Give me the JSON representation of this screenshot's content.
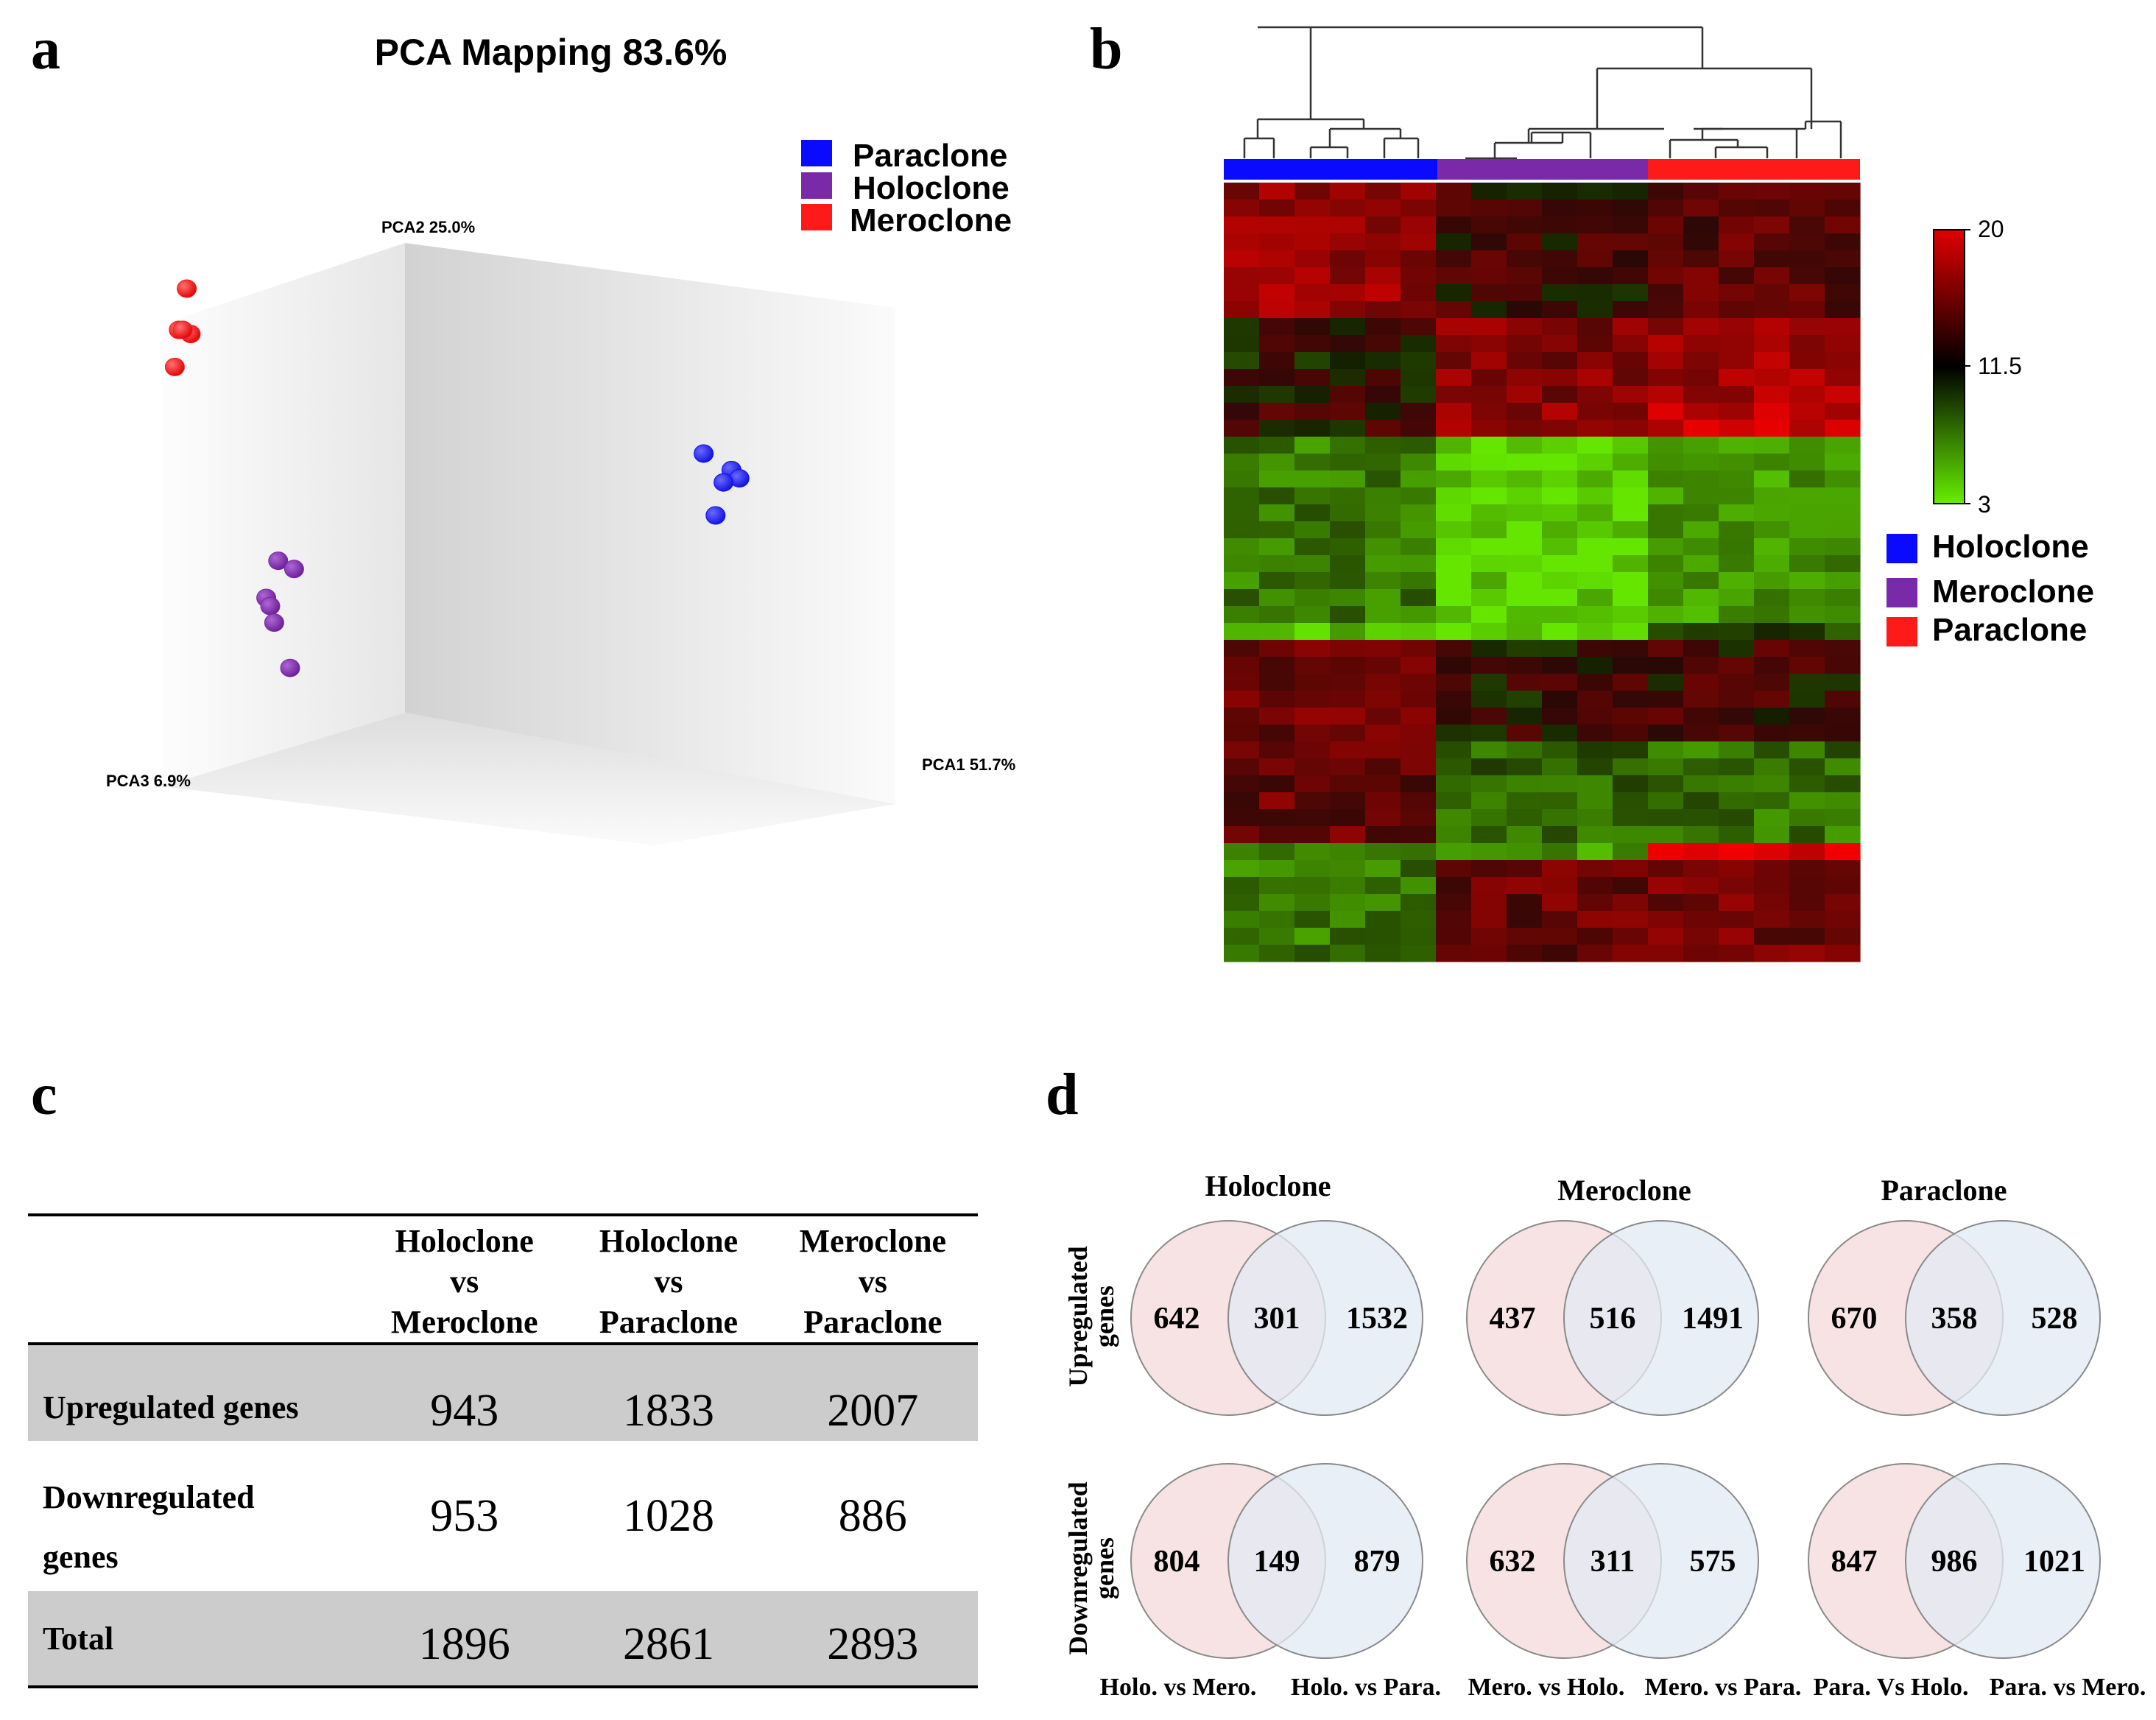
{
  "panel_labels": {
    "a": "a",
    "b": "b",
    "c": "c",
    "d": "d"
  },
  "pca": {
    "title": "PCA Mapping 83.6%",
    "axes": {
      "pc1": "PCA1 51.7%",
      "pc2": "PCA2 25.0%",
      "pc3": "PCA3 6.9%"
    },
    "legend": [
      {
        "label": "Paraclone",
        "color": "#0a0aff"
      },
      {
        "label": "Holoclone",
        "color": "#7a2aa8"
      },
      {
        "label": "Meroclone",
        "color": "#ff1a1a"
      }
    ]
  },
  "chart_data": {
    "type": "scatter",
    "title": "PCA Mapping 83.6%",
    "xlabel": "PCA1 51.7%",
    "ylabel": "PCA2 25.0%",
    "zlabel": "PCA3 6.9%",
    "series": [
      {
        "name": "Meroclone",
        "color": "#ff1a1a",
        "points": [
          [
            -0.86,
            0.55
          ],
          [
            -0.88,
            0.45
          ],
          [
            -0.85,
            0.44
          ],
          [
            -0.89,
            0.36
          ],
          [
            -0.87,
            0.45
          ]
        ]
      },
      {
        "name": "Paraclone",
        "color": "#0a0aff",
        "points": [
          [
            0.44,
            0.15
          ],
          [
            0.51,
            0.11
          ],
          [
            0.53,
            0.09
          ],
          [
            0.49,
            0.08
          ],
          [
            0.47,
            0.0
          ]
        ]
      },
      {
        "name": "Holoclone",
        "color": "#7a2aa8",
        "points": [
          [
            -0.63,
            -0.11
          ],
          [
            -0.59,
            -0.13
          ],
          [
            -0.66,
            -0.2
          ],
          [
            -0.65,
            -0.22
          ],
          [
            -0.64,
            -0.26
          ],
          [
            -0.6,
            -0.37
          ]
        ]
      }
    ]
  },
  "heatmap": {
    "scale_max": "20",
    "scale_mid": "11.5",
    "scale_min": "3",
    "legend": [
      {
        "label": "Holoclone",
        "color": "#0a0aff"
      },
      {
        "label": "Meroclone",
        "color": "#7a2aa8"
      },
      {
        "label": "Paraclone",
        "color": "#ff1a1a"
      }
    ],
    "groups": [
      {
        "name": "Holoclone",
        "color": "#0a0aff"
      },
      {
        "name": "Meroclone",
        "color": "#7a2aa8"
      },
      {
        "name": "Paraclone",
        "color": "#ff1a1a"
      }
    ]
  },
  "table": {
    "headers": [
      [
        "Holoclone",
        "vs",
        "Meroclone"
      ],
      [
        "Holoclone",
        "vs",
        "Paraclone"
      ],
      [
        "Meroclone",
        "vs",
        "Paraclone"
      ]
    ],
    "rows": [
      {
        "label": "Upregulated genes",
        "label2": "",
        "values": [
          "943",
          "1833",
          "2007"
        ],
        "shaded": true
      },
      {
        "label": "Downregulated",
        "label2": "genes",
        "values": [
          "953",
          "1028",
          "886"
        ],
        "shaded": false
      },
      {
        "label": "Total",
        "label2": "",
        "values": [
          "1896",
          "2861",
          "2893"
        ],
        "shaded": true
      }
    ]
  },
  "venn": {
    "columns": [
      "Holoclone",
      "Meroclone",
      "Paraclone"
    ],
    "row_labels": [
      {
        "line1": "Upregulated",
        "line2": "genes"
      },
      {
        "line1": "Downregulated",
        "line2": "genes"
      }
    ],
    "up": [
      {
        "left": "642",
        "mid": "301",
        "right": "1532"
      },
      {
        "left": "437",
        "mid": "516",
        "right": "1491"
      },
      {
        "left": "670",
        "mid": "358",
        "right": "528"
      }
    ],
    "down": [
      {
        "left": "804",
        "mid": "149",
        "right": "879"
      },
      {
        "left": "632",
        "mid": "311",
        "right": "575"
      },
      {
        "left": "847",
        "mid": "986",
        "right": "1021"
      }
    ],
    "bottom_labels": [
      [
        "Holo. vs Mero.",
        "Holo. vs Para."
      ],
      [
        "Mero. vs Holo.",
        "Mero. vs Para."
      ],
      [
        "Para. Vs Holo.",
        "Para. vs Mero."
      ]
    ],
    "left_color": "#f6dede",
    "right_color": "#e2eaf4"
  }
}
